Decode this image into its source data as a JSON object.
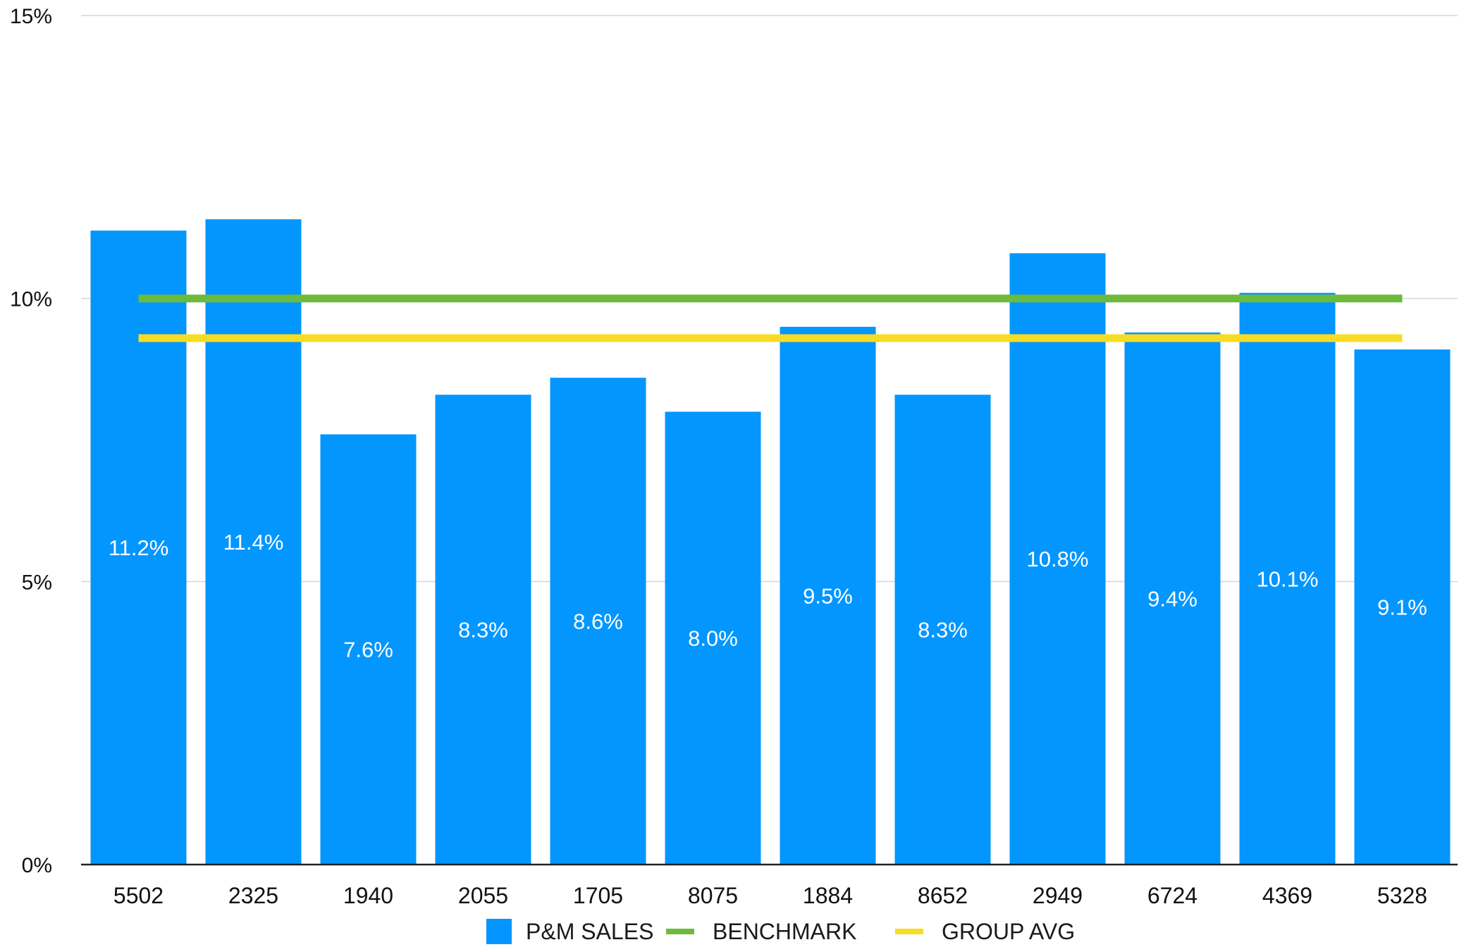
{
  "chart_data": {
    "type": "bar",
    "categories": [
      "5502",
      "2325",
      "1940",
      "2055",
      "1705",
      "8075",
      "1884",
      "8652",
      "2949",
      "6724",
      "4369",
      "5328"
    ],
    "series": [
      {
        "name": "P&M SALES",
        "type": "bar",
        "color": "#0396FF",
        "values": [
          11.2,
          11.4,
          7.6,
          8.3,
          8.6,
          8.0,
          9.5,
          8.3,
          10.8,
          9.4,
          10.1,
          9.1
        ],
        "data_labels": [
          "11.2%",
          "11.4%",
          "7.6%",
          "8.3%",
          "8.6%",
          "8.0%",
          "9.5%",
          "8.3%",
          "10.8%",
          "9.4%",
          "10.1%",
          "9.1%"
        ]
      },
      {
        "name": "BENCHMARK",
        "type": "line",
        "color": "#6CBB3C",
        "values": [
          10.0,
          10.0,
          10.0,
          10.0,
          10.0,
          10.0,
          10.0,
          10.0,
          10.0,
          10.0,
          10.0,
          10.0
        ]
      },
      {
        "name": "GROUP AVG",
        "type": "line",
        "color": "#F7DC26",
        "values": [
          9.3,
          9.3,
          9.3,
          9.3,
          9.3,
          9.3,
          9.3,
          9.3,
          9.3,
          9.3,
          9.3,
          9.3
        ]
      }
    ],
    "ylim": [
      0,
      15
    ],
    "yticks": [
      0,
      5,
      10,
      15
    ],
    "ytick_labels": [
      "0%",
      "5%",
      "10%",
      "15%"
    ],
    "grid": true,
    "legend_position": "bottom-center",
    "title": "",
    "xlabel": "",
    "ylabel": ""
  }
}
